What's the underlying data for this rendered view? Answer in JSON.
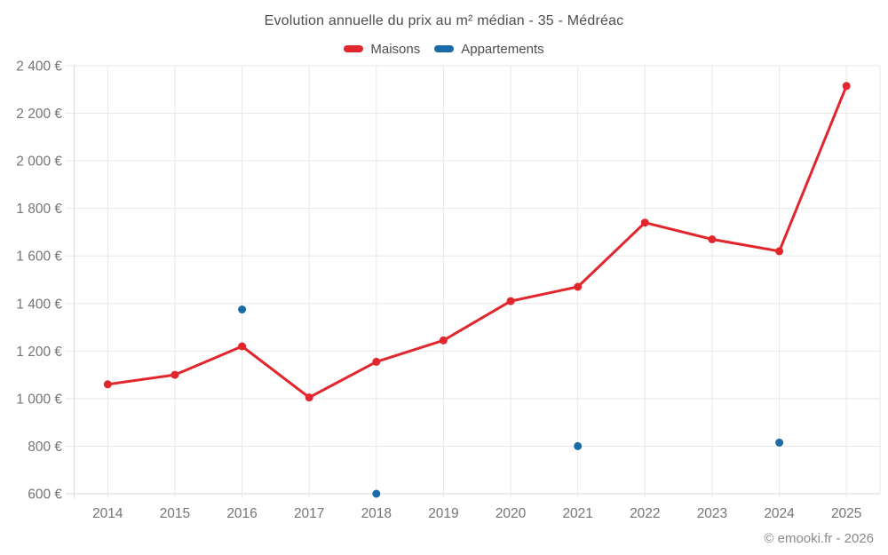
{
  "header": {
    "title": "Evolution annuelle du prix au m² médian - 35 - Médréac"
  },
  "footer": {
    "credit": "© emooki.fr - 2026"
  },
  "chart_data": {
    "type": "line",
    "title": "Evolution annuelle du prix au m² médian - 35 - Médréac",
    "categories": [
      "2014",
      "2015",
      "2016",
      "2017",
      "2018",
      "2019",
      "2020",
      "2021",
      "2022",
      "2023",
      "2024",
      "2025"
    ],
    "series": [
      {
        "name": "Maisons",
        "type": "line",
        "color": "#e1262d",
        "values": [
          1060,
          1100,
          1220,
          1005,
          1155,
          1245,
          1410,
          1470,
          1740,
          1670,
          1620,
          2315
        ]
      },
      {
        "name": "Appartements",
        "type": "scatter",
        "color": "#1a6ca8",
        "values": [
          null,
          null,
          1375,
          null,
          600,
          null,
          null,
          800,
          null,
          null,
          815,
          null
        ]
      }
    ],
    "xlabel": "",
    "ylabel": "",
    "ylim": [
      600,
      2400
    ],
    "yticks": [
      600,
      800,
      1000,
      1200,
      1400,
      1600,
      1800,
      2000,
      2200,
      2400
    ],
    "ytick_labels": [
      "600 €",
      "800 €",
      "1 000 €",
      "1 200 €",
      "1 400 €",
      "1 600 €",
      "1 800 €",
      "2 000 €",
      "2 200 €",
      "2 400 €"
    ],
    "grid": true,
    "legend_position": "top",
    "currency": "€"
  },
  "colors": {
    "grid": "#e8e8e8",
    "axis": "#d9d9d9",
    "title_text": "#4d4d4d",
    "tick_text": "#757575",
    "footer_text": "#8a8a8a",
    "background": "#ffffff"
  }
}
